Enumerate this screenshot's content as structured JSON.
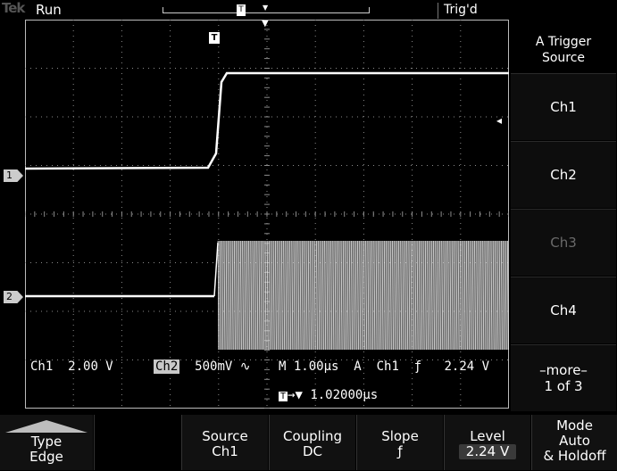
{
  "status": {
    "brand": "Tek",
    "run_state": "Run",
    "trigger_state": "Trig'd"
  },
  "markers": {
    "ch1": "1",
    "ch2": "2",
    "trigger_t": "T",
    "record_t": "T"
  },
  "readout": {
    "ch1_label": "Ch1",
    "ch1_scale": "2.00 V",
    "ch2_label": "Ch2",
    "ch2_scale": "500mV",
    "ch2_bw_symbol": "∿",
    "timebase": "M 1.00µs",
    "trig_mode": "A",
    "trig_source": "Ch1",
    "slope_symbol": "ƒ",
    "trig_level": "2.24 V",
    "delay_icon": "T",
    "delay": "→▼ 1.02000µs"
  },
  "side_menu": {
    "title_line1": "A Trigger",
    "title_line2": "Source",
    "items": [
      "Ch1",
      "Ch2",
      "Ch3",
      "Ch4"
    ],
    "more_line1": "–more–",
    "more_line2": "1 of 3"
  },
  "bottom_menu": {
    "type": {
      "line1": "Type",
      "line2": "Edge"
    },
    "source": {
      "line1": "Source",
      "line2": "Ch1"
    },
    "coupling": {
      "line1": "Coupling",
      "line2": "DC"
    },
    "slope": {
      "line1": "Slope",
      "line2": "ƒ"
    },
    "level": {
      "line1": "Level",
      "line2": "2.24 V"
    },
    "mode": {
      "line1": "Mode",
      "line2": "Auto",
      "line3": "& Holdoff"
    }
  },
  "colors": {
    "trace": "#ffffff",
    "grid": "#8a8a8a",
    "background": "#000000",
    "dim_text": "#6a6a6a"
  },
  "icons": [
    "trigger-position-icon",
    "record-position-icon",
    "trigger-level-arrow-icon",
    "ch1-ground-marker-icon",
    "ch2-ground-marker-icon"
  ]
}
